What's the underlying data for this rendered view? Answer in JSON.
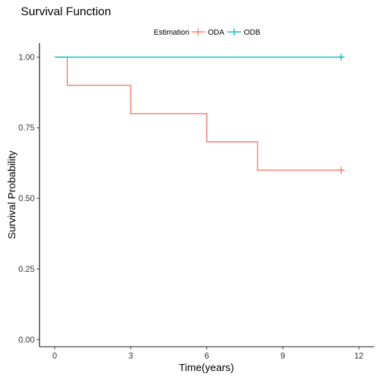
{
  "chart_data": {
    "type": "line",
    "subtype": "step",
    "title": "Survival Function",
    "xlabel": "Time(years)",
    "ylabel": "Survival Probability",
    "xlim": [
      -0.6,
      12.6
    ],
    "ylim": [
      -0.025,
      1.05
    ],
    "x_ticks": [
      0,
      3,
      6,
      9,
      12
    ],
    "x_tick_labels": [
      "0",
      "3",
      "6",
      "9",
      "12"
    ],
    "y_ticks": [
      0,
      0.25,
      0.5,
      0.75,
      1.0
    ],
    "y_tick_labels": [
      "0.00",
      "0.25",
      "0.50",
      "0.75",
      "1.00"
    ],
    "grid": false,
    "legend": {
      "position": "top",
      "title": "Estimation",
      "entries": [
        "ODA",
        "ODB"
      ]
    },
    "series": [
      {
        "name": "ODA",
        "color": "#F8766D",
        "x": [
          0,
          0.5,
          3.0,
          6.0,
          8.0,
          11.3
        ],
        "y": [
          1.0,
          0.9,
          0.8,
          0.7,
          0.6,
          0.6
        ],
        "censored": [
          {
            "x": 11.3,
            "y": 0.6
          }
        ]
      },
      {
        "name": "ODB",
        "color": "#00BFC4",
        "x": [
          0,
          11.3
        ],
        "y": [
          1.0,
          1.0
        ],
        "censored": [
          {
            "x": 11.3,
            "y": 1.0
          }
        ]
      }
    ]
  }
}
